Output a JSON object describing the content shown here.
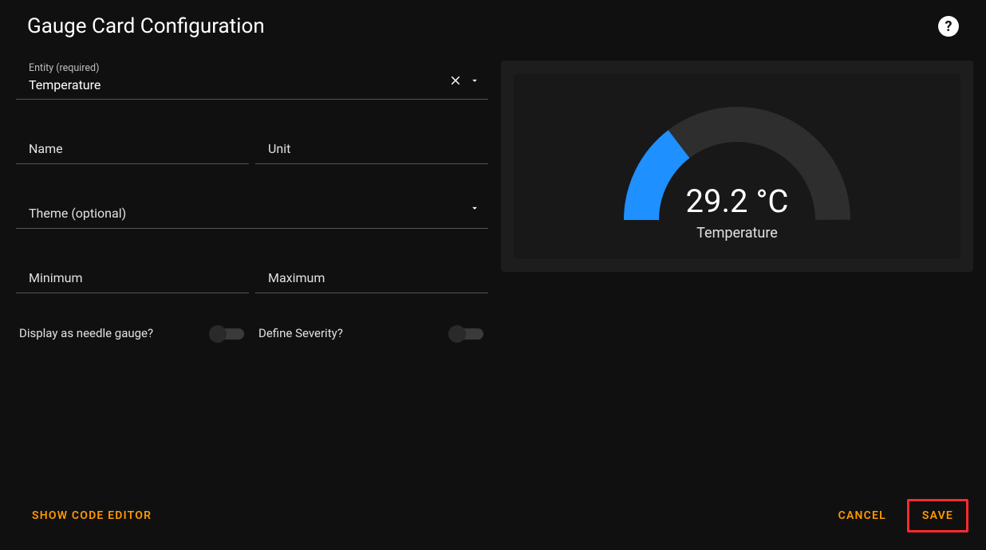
{
  "header": {
    "title": "Gauge Card Configuration"
  },
  "form": {
    "entity": {
      "label": "Entity (required)",
      "value": "Temperature"
    },
    "name": {
      "label": "Name",
      "value": ""
    },
    "unit": {
      "label": "Unit",
      "value": ""
    },
    "theme": {
      "label": "Theme (optional)",
      "value": ""
    },
    "minimum": {
      "label": "Minimum",
      "value": ""
    },
    "maximum": {
      "label": "Maximum",
      "value": ""
    },
    "needle_toggle": {
      "label": "Display as needle gauge?",
      "checked": false
    },
    "severity_toggle": {
      "label": "Define Severity?",
      "checked": false
    }
  },
  "preview": {
    "gauge": {
      "type": "gauge",
      "value_text": "29.2 °C",
      "name": "Temperature",
      "fraction": 0.292,
      "track_color": "#2e2e2e",
      "fill_color": "#1e90ff",
      "stroke_width": 44,
      "value_color": "#ffffff",
      "value_fontsize": 40,
      "name_color": "#e1e1e1",
      "name_fontsize": 18,
      "card_background": "#181818",
      "wrapper_background": "#1d1d1d"
    }
  },
  "footer": {
    "show_code": "SHOW CODE EDITOR",
    "cancel": "CANCEL",
    "save": "SAVE"
  },
  "colors": {
    "accent": "#ff9800",
    "highlight_border": "#ff2b2b",
    "background": "#101010"
  }
}
